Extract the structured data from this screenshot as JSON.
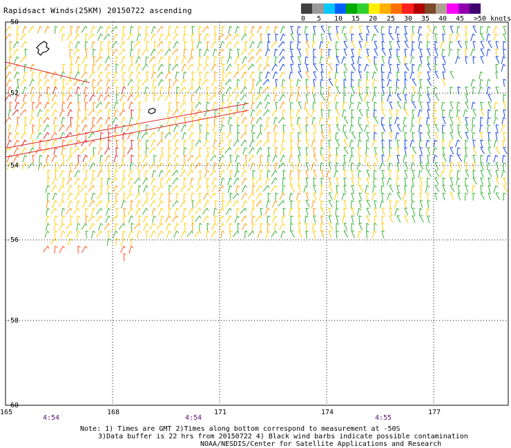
{
  "title": "Rapidsact Winds(25KM) 20150722 ascending",
  "scale": {
    "colors": [
      "#404040",
      "#9a9a9a",
      "#00c8ff",
      "#0060ff",
      "#00aa00",
      "#30d030",
      "#ffee00",
      "#ffb000",
      "#ff7000",
      "#ff2020",
      "#b00000",
      "#7a4a2a",
      "#b0a090",
      "#ff00ff",
      "#9000b0",
      "#400070"
    ],
    "labels": [
      "0",
      "5",
      "10",
      "15",
      "20",
      "25",
      "30",
      "35",
      "40",
      "45",
      ">50 knots"
    ]
  },
  "map": {
    "latitudes": [
      "-50",
      "-52",
      "-54",
      "-56",
      "-58",
      "-60"
    ],
    "longitudes": [
      "165",
      "168",
      "171",
      "174",
      "177"
    ]
  },
  "times": [
    "4:54",
    "4:54",
    "4:55"
  ],
  "notes": [
    "Note: 1) Times are GMT 2)Times along bottom correspond to measurement at -50S",
    "3)Data buffer is 22 hrs from 20150722 4) Black wind barbs indicate possible contamination",
    "NOAA/NESDIS/Center for Satellite Applications and Research"
  ]
}
